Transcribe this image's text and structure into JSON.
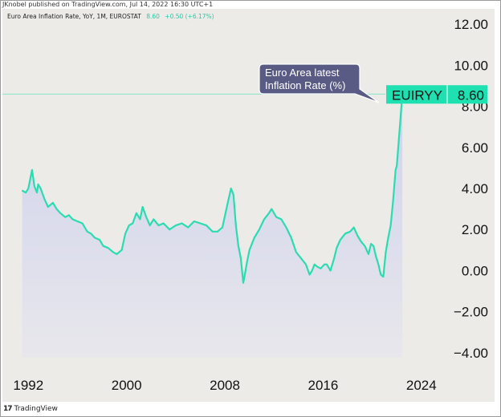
{
  "publisher_text": "JKnobel published on TradingView.com, Jul 14, 2022 16:30 UTC+1",
  "legend": {
    "title": "Euro Area Inflation Rate, YoY, 1M, EUROSTAT",
    "last_value": "8.60",
    "change": "+0.50 (+6.17%)"
  },
  "callout": {
    "line1": "Euro Area latest",
    "line2": "Inflation Rate (%)"
  },
  "price_tag": {
    "symbol": "EUIRYY",
    "value": "8.60"
  },
  "footer": {
    "brand": "TradingView"
  },
  "colors": {
    "line": "#2bdcb0",
    "fill_top": "#cfd2ec",
    "fill_bottom": "#e8e7ec",
    "tag": "#1ee0b0",
    "callout_bg": "#5a5b84",
    "background": "#edebe8"
  },
  "chart_data": {
    "type": "area",
    "title": "Euro Area Inflation Rate, YoY, 1M, EUROSTAT",
    "xlabel": "",
    "ylabel": "",
    "xlim": [
      1991.0,
      2026.3
    ],
    "ylim": [
      -4.4,
      12.4
    ],
    "x_ticks": [
      1992,
      2000,
      2008,
      2016,
      2024
    ],
    "x_tick_labels": [
      "1992",
      "2000",
      "2008",
      "2016",
      "2024"
    ],
    "y_ticks": [
      12,
      10,
      8,
      6,
      4,
      2,
      0,
      -2,
      -4
    ],
    "y_tick_labels": [
      "12.00",
      "10.00",
      "8.00",
      "6.00",
      "4.00",
      "2.00",
      "0.00",
      "−2.00",
      "−4.00"
    ],
    "grid": false,
    "series": [
      {
        "x": [
          1991.5,
          1991.8,
          1992.0,
          1992.3,
          1992.5,
          1992.7,
          1992.8,
          1993.0,
          1993.3,
          1993.6,
          1994.0,
          1994.3,
          1994.6,
          1995.0,
          1995.3,
          1995.6,
          1996.0,
          1996.4,
          1996.8,
          1997.1,
          1997.4,
          1997.8,
          1998.1,
          1998.5,
          1998.9,
          1999.2,
          1999.6,
          1999.9,
          2000.2,
          2000.5,
          2000.8,
          2001.1,
          2001.3,
          2001.6,
          2001.9,
          2002.2,
          2002.6,
          2003.0,
          2003.5,
          2004.0,
          2004.5,
          2005.0,
          2005.5,
          2006.0,
          2006.5,
          2007.0,
          2007.4,
          2007.8,
          2008.2,
          2008.5,
          2008.7,
          2008.9,
          2009.1,
          2009.3,
          2009.5,
          2009.6,
          2009.8,
          2010.0,
          2010.4,
          2010.8,
          2011.2,
          2011.6,
          2011.8,
          2012.2,
          2012.6,
          2013.0,
          2013.4,
          2013.8,
          2014.2,
          2014.6,
          2014.9,
          2015.1,
          2015.3,
          2015.5,
          2015.8,
          2016.1,
          2016.3,
          2016.6,
          2016.9,
          2017.1,
          2017.4,
          2017.8,
          2018.2,
          2018.5,
          2018.8,
          2019.1,
          2019.4,
          2019.7,
          2019.9,
          2020.1,
          2020.3,
          2020.5,
          2020.7,
          2020.9,
          2021.1,
          2021.3,
          2021.5,
          2021.7,
          2021.9,
          2022.0,
          2022.1,
          2022.3,
          2022.45
        ],
        "values": [
          3.9,
          3.8,
          4.0,
          4.9,
          4.1,
          3.8,
          4.2,
          4.0,
          3.5,
          3.1,
          3.3,
          3.0,
          2.8,
          2.6,
          2.7,
          2.5,
          2.4,
          2.3,
          1.9,
          1.8,
          1.6,
          1.5,
          1.2,
          1.1,
          0.9,
          0.8,
          1.0,
          1.8,
          2.2,
          2.3,
          2.8,
          2.5,
          3.1,
          2.6,
          2.2,
          2.5,
          2.2,
          2.3,
          2.0,
          2.2,
          2.3,
          2.1,
          2.4,
          2.3,
          2.2,
          1.9,
          1.9,
          2.1,
          3.2,
          4.0,
          3.7,
          2.2,
          1.2,
          0.6,
          -0.6,
          -0.3,
          0.4,
          1.0,
          1.6,
          2.0,
          2.5,
          2.8,
          3.0,
          2.6,
          2.5,
          2.1,
          1.6,
          0.9,
          0.6,
          0.3,
          -0.2,
          0.0,
          0.3,
          0.2,
          0.1,
          0.3,
          0.3,
          0.0,
          0.6,
          1.1,
          1.5,
          1.8,
          1.9,
          2.1,
          1.7,
          1.4,
          1.2,
          0.8,
          1.3,
          1.2,
          0.7,
          0.3,
          -0.2,
          -0.3,
          0.9,
          1.6,
          2.2,
          3.4,
          4.9,
          5.1,
          5.9,
          7.4,
          8.6
        ]
      }
    ],
    "last_value": 8.6
  }
}
